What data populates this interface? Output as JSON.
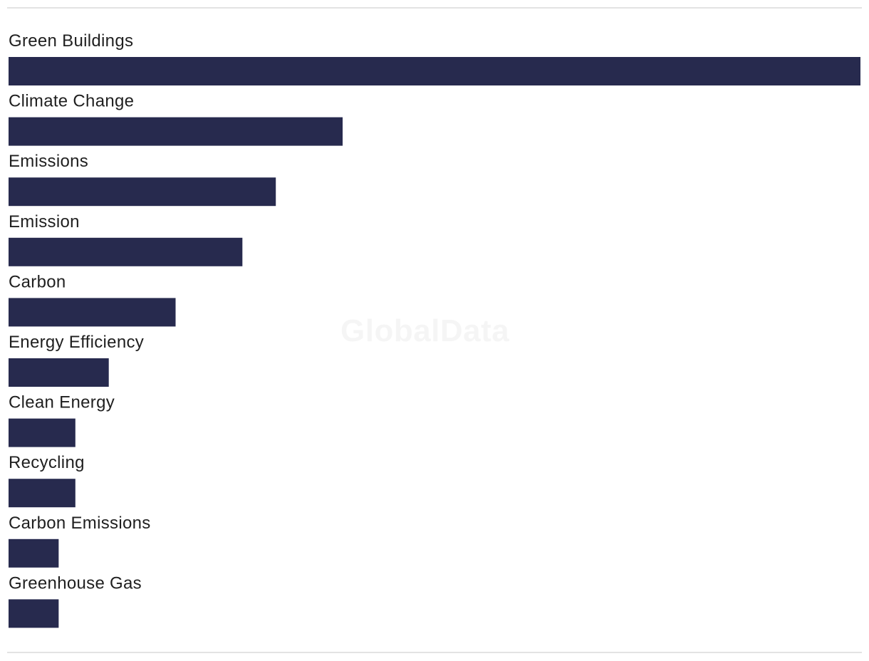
{
  "watermark": "GlobalData",
  "colors": {
    "bar": "#272a4e",
    "label": "#1f1f1f",
    "rule": "#e3e3e3"
  },
  "chart_data": {
    "type": "bar",
    "orientation": "horizontal",
    "categories": [
      "Green Buildings",
      "Climate Change",
      "Emissions",
      "Emission",
      "Carbon",
      "Energy Efficiency",
      "Clean Energy",
      "Recycling",
      "Carbon Emissions",
      "Greenhouse Gas"
    ],
    "values": [
      51,
      20,
      16,
      14,
      10,
      6,
      4,
      4,
      3,
      3
    ],
    "xlim": [
      0,
      51
    ],
    "grid": false,
    "legend": "none"
  }
}
